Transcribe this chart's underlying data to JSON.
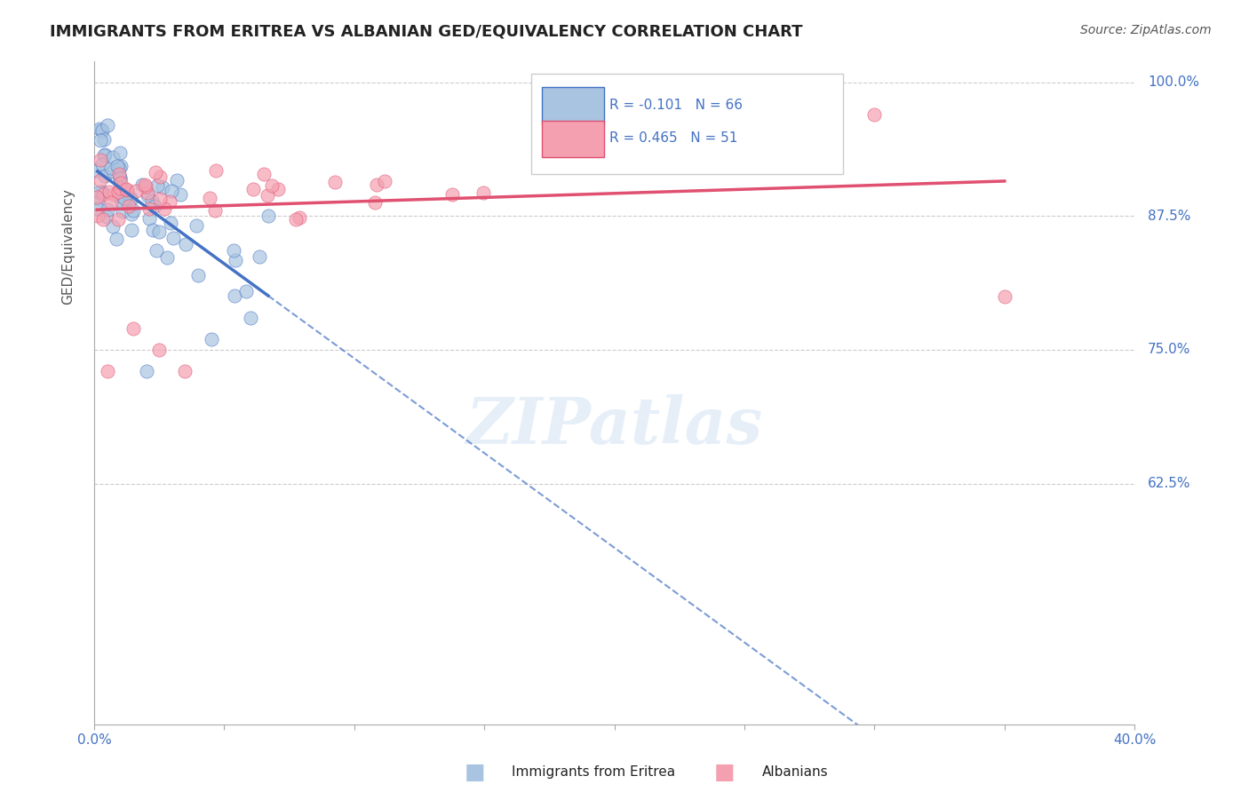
{
  "title": "IMMIGRANTS FROM ERITREA VS ALBANIAN GED/EQUIVALENCY CORRELATION CHART",
  "source": "Source: ZipAtlas.com",
  "ylabel": "GED/Equivalency",
  "legend_label1": "Immigrants from Eritrea",
  "legend_label2": "Albanians",
  "r_eritrea": -0.101,
  "n_eritrea": 66,
  "r_albanian": 0.465,
  "n_albanian": 51,
  "watermark": "ZIPatlas",
  "color_eritrea": "#a8c4e0",
  "color_albanian": "#f4a0b0",
  "line_color_eritrea": "#4472c4",
  "line_color_albanian": "#e05070",
  "title_color": "#222222",
  "axis_label_color": "#4472c4",
  "x_min": 0.0,
  "x_max": 0.4,
  "y_min": 0.4,
  "y_max": 1.02,
  "ytick_labels": [
    "100.0%",
    "87.5%",
    "75.0%",
    "62.5%"
  ],
  "ytick_values": [
    1.0,
    0.875,
    0.75,
    0.625
  ]
}
